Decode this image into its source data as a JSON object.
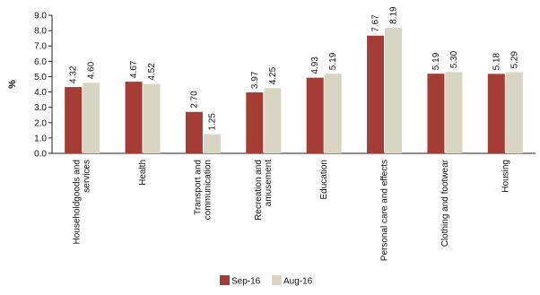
{
  "chart_data": {
    "type": "bar",
    "title": "",
    "xlabel": "",
    "ylabel": "%",
    "ylim": [
      0,
      9
    ],
    "yticks": [
      "0.0",
      "1.0",
      "2.0",
      "3.0",
      "4.0",
      "5.0",
      "6.0",
      "7.0",
      "8.0",
      "9.0"
    ],
    "grid": false,
    "legend_position": "bottom",
    "categories": [
      [
        "Householdgoods and",
        "services"
      ],
      [
        "Health"
      ],
      [
        "Transport and",
        "communication"
      ],
      [
        "Recreation and",
        "amusement"
      ],
      [
        "Education"
      ],
      [
        "Personal care and effects"
      ],
      [
        "Clothing and footwear"
      ],
      [
        "Housing"
      ]
    ],
    "series": [
      {
        "name": "Sep-16",
        "color": "#a33d35",
        "values": [
          4.32,
          4.67,
          2.7,
          3.97,
          4.93,
          7.67,
          5.19,
          5.18
        ],
        "labels": [
          "4.32",
          "4.67",
          "2.70",
          "3.97",
          "4.93",
          "7.67",
          "5.19",
          "5.18"
        ]
      },
      {
        "name": "Aug-16",
        "color": "#d8d6c3",
        "values": [
          4.6,
          4.52,
          1.25,
          4.25,
          5.19,
          8.19,
          5.3,
          5.29
        ],
        "labels": [
          "4.60",
          "4.52",
          "1.25",
          "4.25",
          "5.19",
          "8.19",
          "5.30",
          "5.29"
        ]
      }
    ]
  }
}
